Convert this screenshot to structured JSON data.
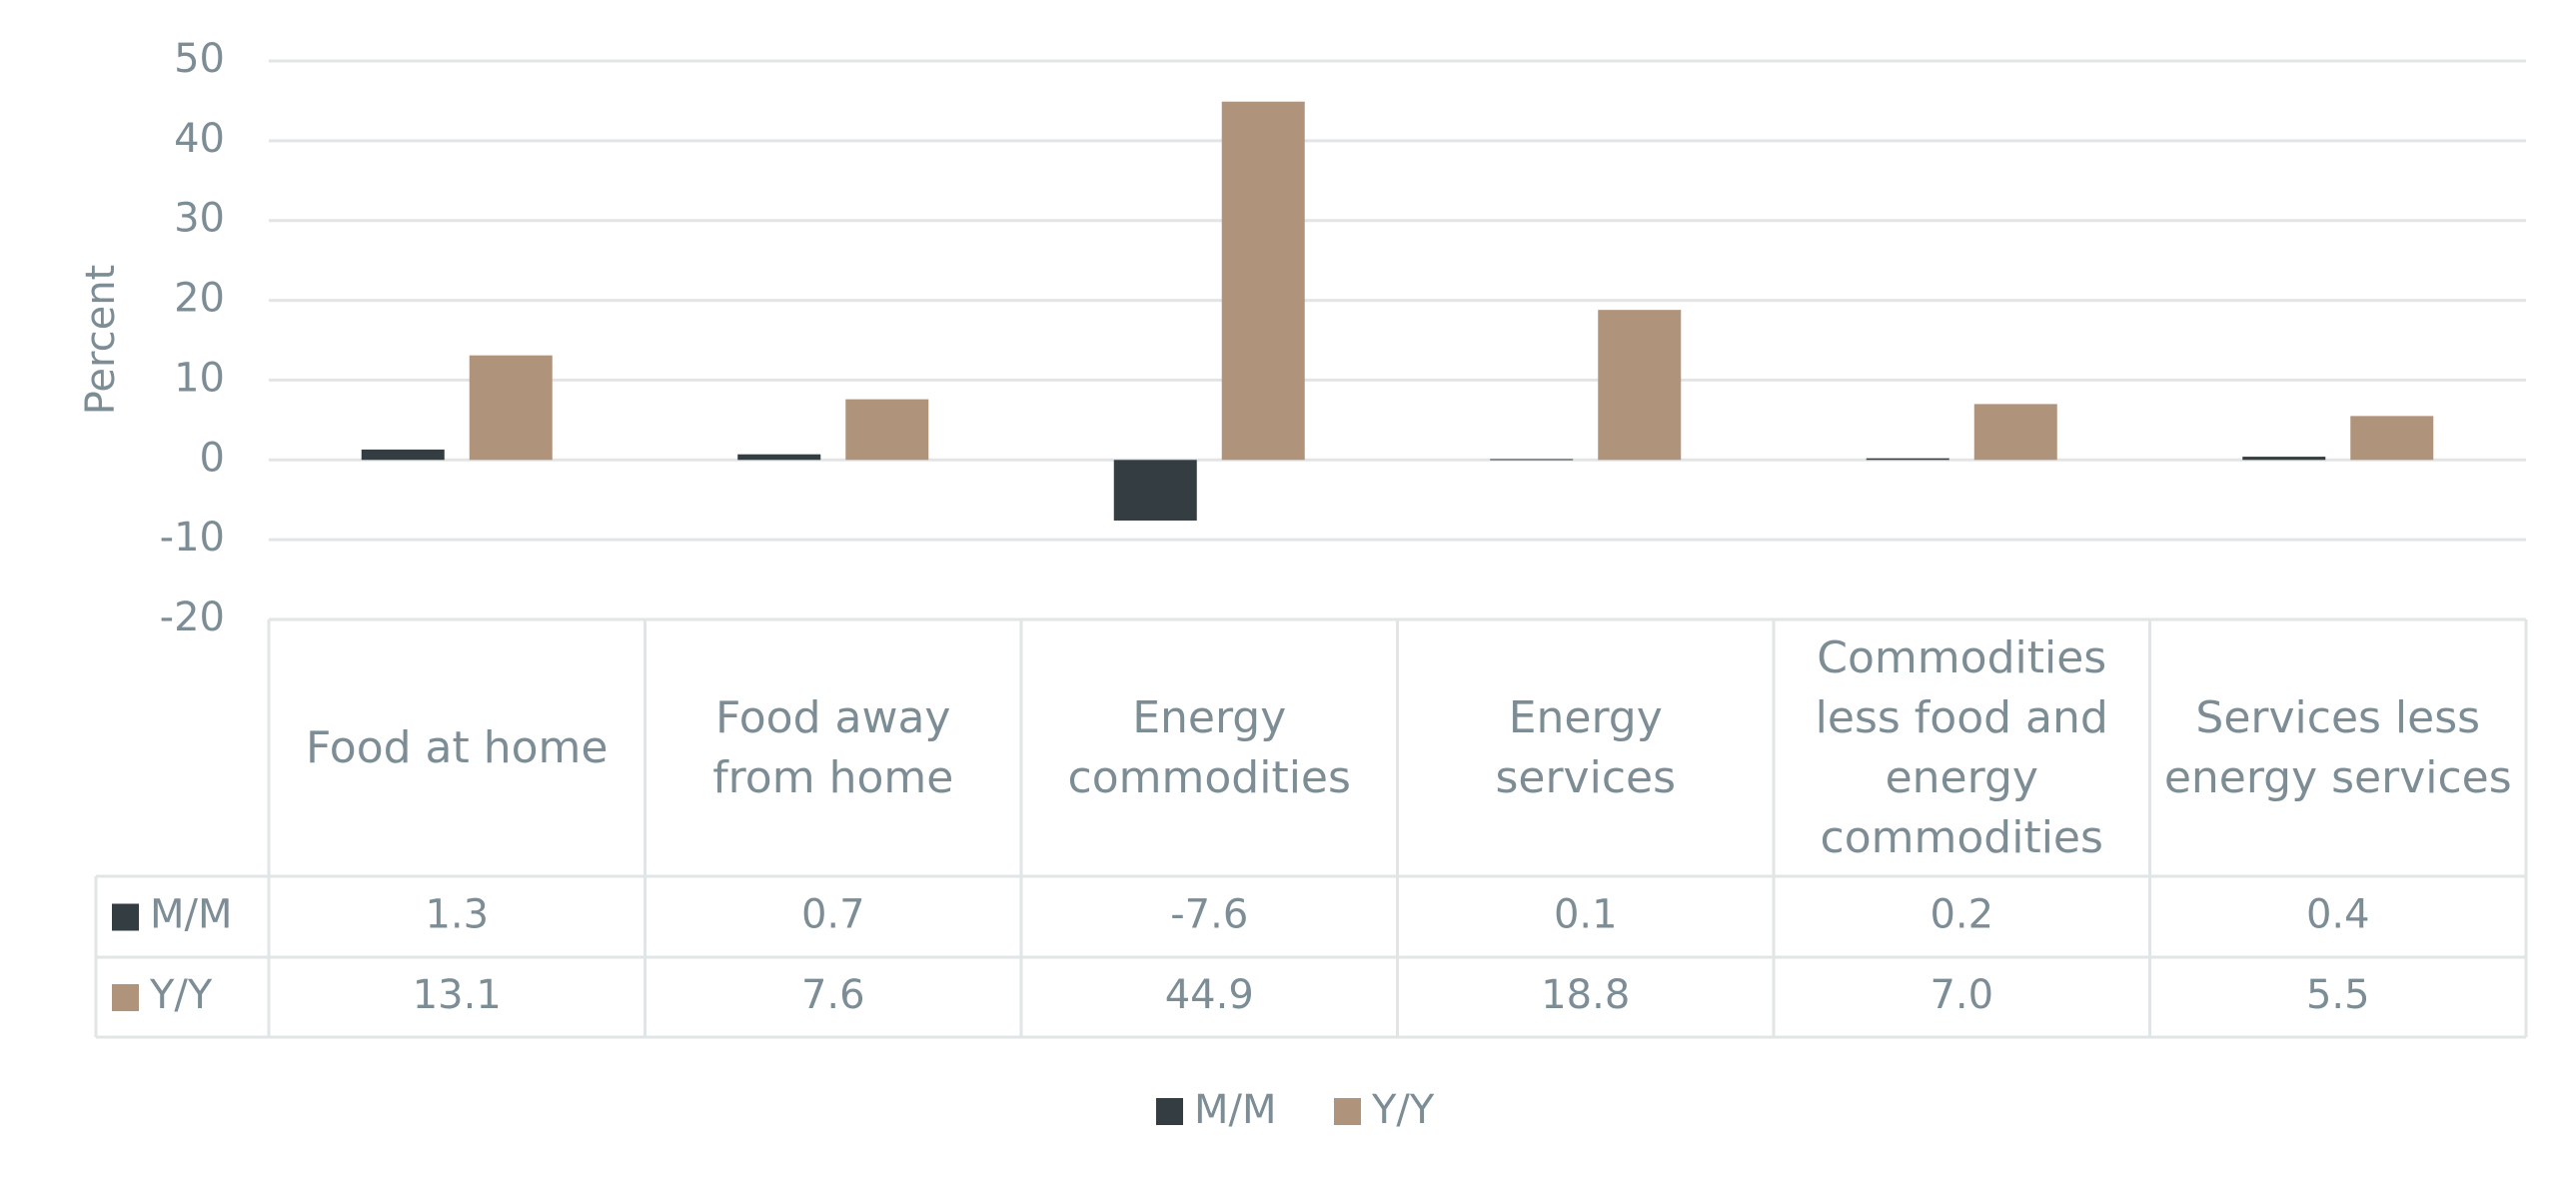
{
  "chart_data": {
    "type": "bar",
    "y_label": "Percent",
    "categories": [
      "Food at home",
      "Food away from home",
      "Energy commodities",
      "Energy services",
      "Commodities less food and energy commodities",
      "Services less energy services"
    ],
    "series": [
      {
        "name": "M/M",
        "color": "#343d42",
        "values": [
          1.3,
          0.7,
          -7.6,
          0.1,
          0.2,
          0.4
        ],
        "value_labels": [
          "1.3",
          "0.7",
          "-7.6",
          "0.1",
          "0.2",
          "0.4"
        ]
      },
      {
        "name": "Y/Y",
        "color": "#b0937b",
        "values": [
          13.1,
          7.6,
          44.9,
          18.8,
          7.0,
          5.5
        ],
        "value_labels": [
          "13.1",
          "7.6",
          "44.9",
          "18.8",
          "7.0",
          "5.5"
        ]
      }
    ],
    "ylim": [
      -20,
      50
    ],
    "yticks": [
      -20,
      -10,
      0,
      10,
      20,
      30,
      40,
      50
    ],
    "grid": true,
    "legend": "bottom"
  }
}
